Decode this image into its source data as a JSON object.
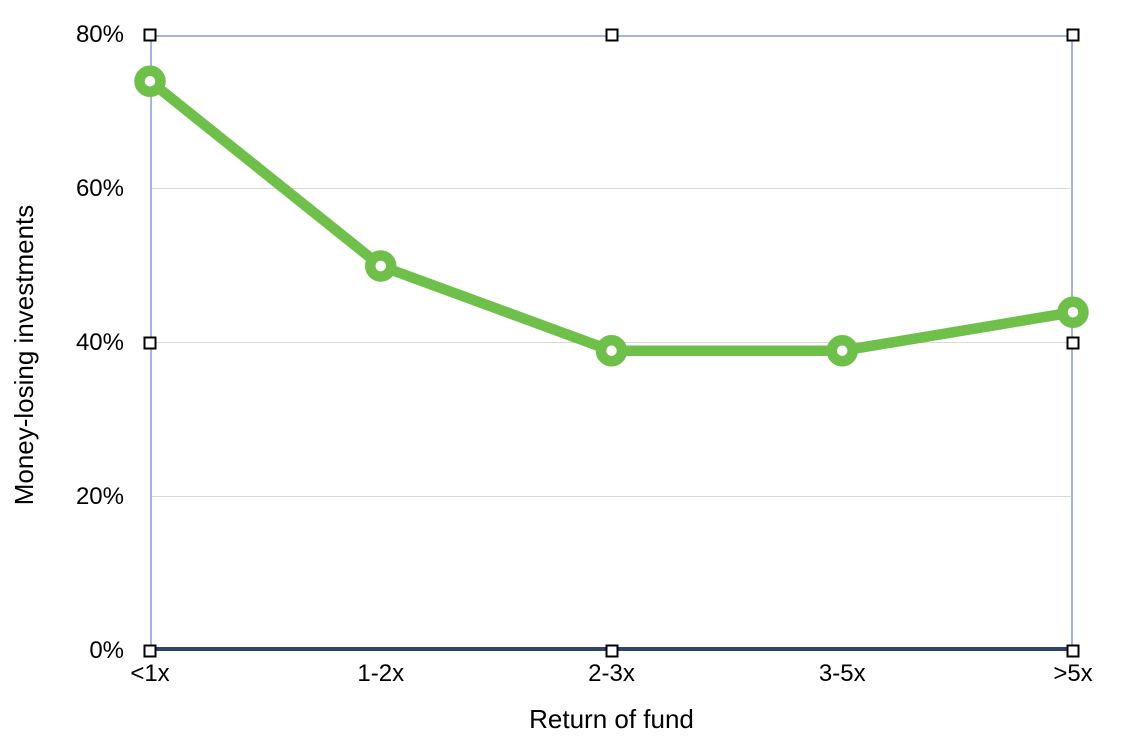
{
  "chart_data": {
    "type": "line",
    "categories": [
      "<1x",
      "1-2x",
      "2-3x",
      "3-5x",
      ">5x"
    ],
    "series": [
      {
        "name": "Money-losing investments",
        "values": [
          74,
          50,
          39,
          39,
          44
        ],
        "color": "#6EC04B",
        "marker": "open-circle"
      }
    ],
    "title": "",
    "xlabel": "Return of fund",
    "ylabel": "Money-losing investments",
    "ylim": [
      0,
      80
    ],
    "yticks": [
      {
        "value": 0,
        "label": "0%"
      },
      {
        "value": 20,
        "label": "20%"
      },
      {
        "value": 40,
        "label": "40%"
      },
      {
        "value": 60,
        "label": "60%"
      },
      {
        "value": 80,
        "label": "80%"
      }
    ],
    "gridline_values": [
      20,
      40,
      60
    ],
    "grid": "horizontal",
    "legend_position": "none"
  },
  "selection": {
    "active": true,
    "handle_fractions": [
      [
        0,
        0
      ],
      [
        0.5,
        0
      ],
      [
        1,
        0
      ],
      [
        0,
        0.5
      ],
      [
        1,
        0.5
      ],
      [
        0,
        1
      ],
      [
        0.5,
        1
      ],
      [
        1,
        1
      ]
    ],
    "box_color": "#A0B5DF",
    "handle_fill": "#FFFFFF",
    "handle_border": "#000000"
  },
  "colors": {
    "series_green": "#6EC04B",
    "x_axis_line": "#2F436E",
    "gridline": "#D9D9D9",
    "text": "#000000",
    "background": "#FFFFFF"
  }
}
